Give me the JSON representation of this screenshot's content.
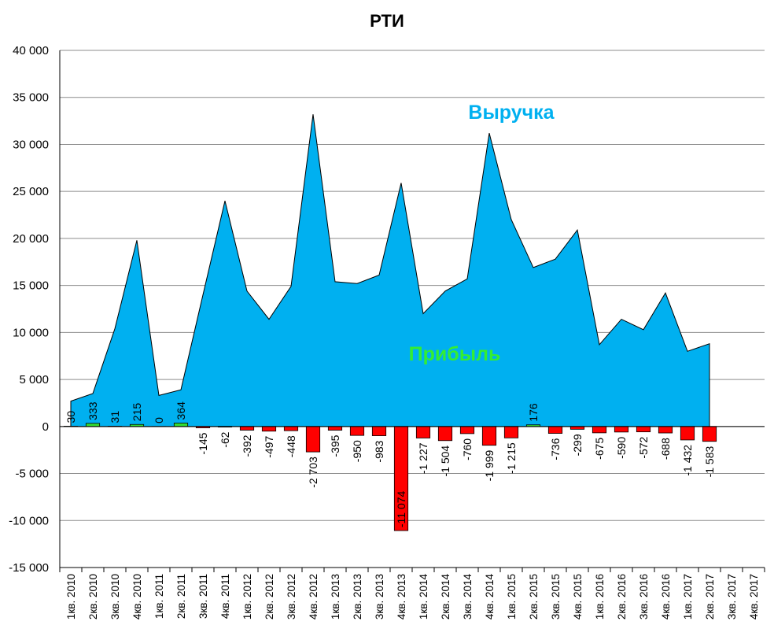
{
  "chart_data": {
    "type": "area",
    "title": "РТИ",
    "categories": [
      "1кв. 2010",
      "2кв. 2010",
      "3кв. 2010",
      "4кв. 2010",
      "1кв. 2011",
      "2кв. 2011",
      "3кв. 2011",
      "4кв. 2011",
      "1кв. 2012",
      "2кв. 2012",
      "3кв. 2012",
      "4кв. 2012",
      "1кв. 2013",
      "2кв. 2013",
      "3кв. 2013",
      "4кв. 2013",
      "1кв. 2014",
      "2кв. 2014",
      "3кв. 2014",
      "4кв. 2014",
      "1кв. 2015",
      "2кв. 2015",
      "3кв. 2015",
      "4кв. 2015",
      "1кв. 2016",
      "2кв. 2016",
      "3кв. 2016",
      "4кв. 2016",
      "1кв. 2017",
      "2кв. 2017",
      "3кв. 2017",
      "4кв. 2017"
    ],
    "ylim": [
      -15000,
      40000
    ],
    "yticks": [
      40000,
      35000,
      30000,
      25000,
      20000,
      15000,
      10000,
      5000,
      0,
      -5000,
      -10000,
      -15000
    ],
    "ytick_labels": [
      "40 000",
      "35 000",
      "30 000",
      "25 000",
      "20 000",
      "15 000",
      "10 000",
      "5 000",
      "0",
      "-5 000",
      "-10 000",
      "-15 000"
    ],
    "grid": true,
    "series": [
      {
        "name": "Выручка",
        "type": "area",
        "color": "#00B0F0",
        "values": [
          2700,
          3500,
          10400,
          19800,
          3300,
          3900,
          14000,
          24000,
          14400,
          11400,
          14900,
          33200,
          15400,
          15200,
          16100,
          25900,
          12000,
          14400,
          15700,
          31200,
          22000,
          16900,
          17800,
          20900,
          8700,
          11400,
          10300,
          14200,
          8000,
          8800,
          null,
          null
        ]
      },
      {
        "name": "Прибыль",
        "type": "bar",
        "positive_color": "#33DD33",
        "negative_color": "#FF0000",
        "values": [
          30,
          333,
          31,
          215,
          0,
          364,
          -145,
          -62,
          -392,
          -497,
          -448,
          -2703,
          -395,
          -950,
          -983,
          -11074,
          -1227,
          -1504,
          -760,
          -1999,
          -1215,
          176,
          -736,
          -299,
          -675,
          -590,
          -572,
          -688,
          -1432,
          -1583,
          null,
          null
        ],
        "data_labels": [
          "30",
          "333",
          "31",
          "215",
          "0",
          "364",
          "-145",
          "-62",
          "-392",
          "-497",
          "-448",
          "-2 703",
          "-395",
          "-950",
          "-983",
          "-11 074",
          "-1 227",
          "-1 504",
          "-760",
          "-1 999",
          "-1 215",
          "176",
          "-736",
          "-299",
          "-675",
          "-590",
          "-572",
          "-688",
          "-1 432",
          "-1 583",
          "",
          ""
        ]
      }
    ],
    "series_label_colors": {
      "revenue": "#00B0F0",
      "profit": "#33EE33"
    }
  }
}
